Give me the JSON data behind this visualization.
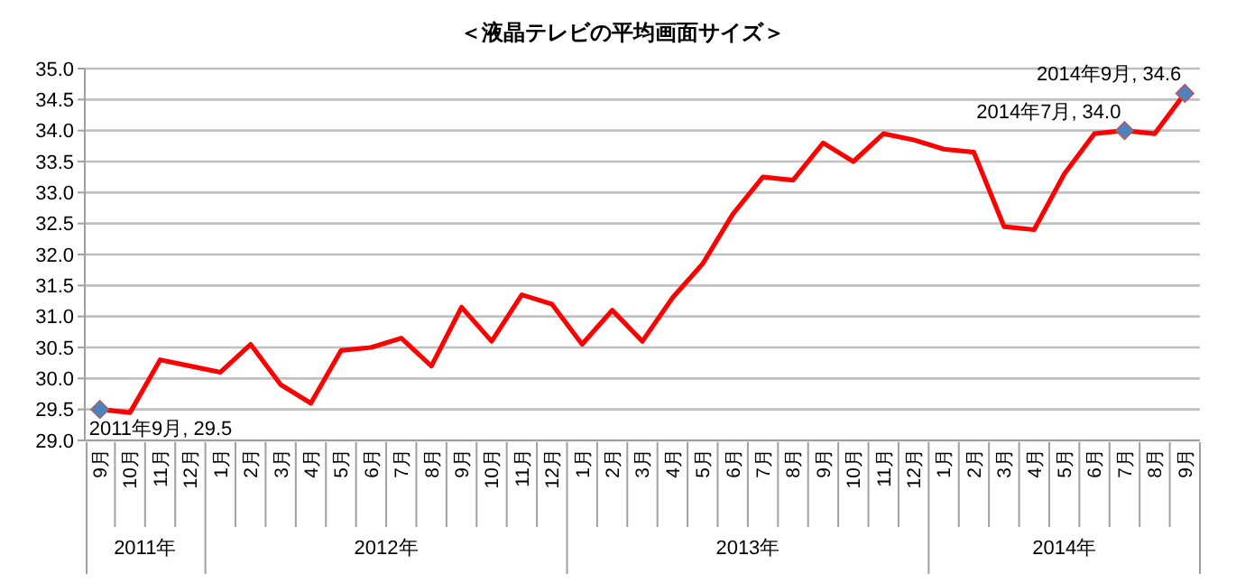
{
  "chart_data": {
    "type": "line",
    "title": "＜液晶テレビの平均画面サイズ＞",
    "categories": [
      "9月",
      "10月",
      "11月",
      "12月",
      "1月",
      "2月",
      "3月",
      "4月",
      "5月",
      "6月",
      "7月",
      "8月",
      "9月",
      "10月",
      "11月",
      "12月",
      "1月",
      "2月",
      "3月",
      "4月",
      "5月",
      "6月",
      "7月",
      "8月",
      "9月",
      "10月",
      "11月",
      "12月",
      "1月",
      "2月",
      "3月",
      "4月",
      "5月",
      "6月",
      "7月",
      "8月",
      "9月"
    ],
    "series": [
      {
        "color": "#ff0000",
        "value_labels": [
          "2011年9月, 29.5",
          null,
          null,
          null,
          null,
          null,
          null,
          null,
          null,
          null,
          null,
          null,
          null,
          null,
          null,
          null,
          null,
          null,
          null,
          null,
          null,
          null,
          null,
          null,
          null,
          null,
          null,
          null,
          null,
          null,
          null,
          null,
          null,
          null,
          "2014年7月, 34.0",
          null,
          "2014年9月, 34.6"
        ],
        "values": [
          29.5,
          29.45,
          30.3,
          30.2,
          30.1,
          30.55,
          29.9,
          29.6,
          30.45,
          30.5,
          30.65,
          30.2,
          31.15,
          30.6,
          31.35,
          31.2,
          30.55,
          31.1,
          30.6,
          31.3,
          31.85,
          32.65,
          33.25,
          33.2,
          33.8,
          33.5,
          33.95,
          33.85,
          33.7,
          33.65,
          32.45,
          32.4,
          33.3,
          33.95,
          34.0,
          33.95,
          34.6
        ]
      }
    ],
    "ylim": [
      29,
      35
    ],
    "yticks": [
      {
        "value": 29,
        "label": "29.0"
      },
      {
        "value": 29.5,
        "label": "29.5"
      },
      {
        "value": 30,
        "label": "30.0"
      },
      {
        "value": 30.5,
        "label": "30.5"
      },
      {
        "value": 31,
        "label": "31.0"
      },
      {
        "value": 31.5,
        "label": "31.5"
      },
      {
        "value": 32,
        "label": "32.0"
      },
      {
        "value": 32.5,
        "label": "32.5"
      },
      {
        "value": 33,
        "label": "33.0"
      },
      {
        "value": 33.5,
        "label": "33.5"
      },
      {
        "value": 34,
        "label": "34.0"
      },
      {
        "value": 34.5,
        "label": "34.5"
      },
      {
        "value": 35,
        "label": "35.0"
      }
    ],
    "grid": "y",
    "line_style": "solid",
    "annotations": [
      "2011年",
      "2012年",
      "2013年",
      "2014年"
    ]
  }
}
